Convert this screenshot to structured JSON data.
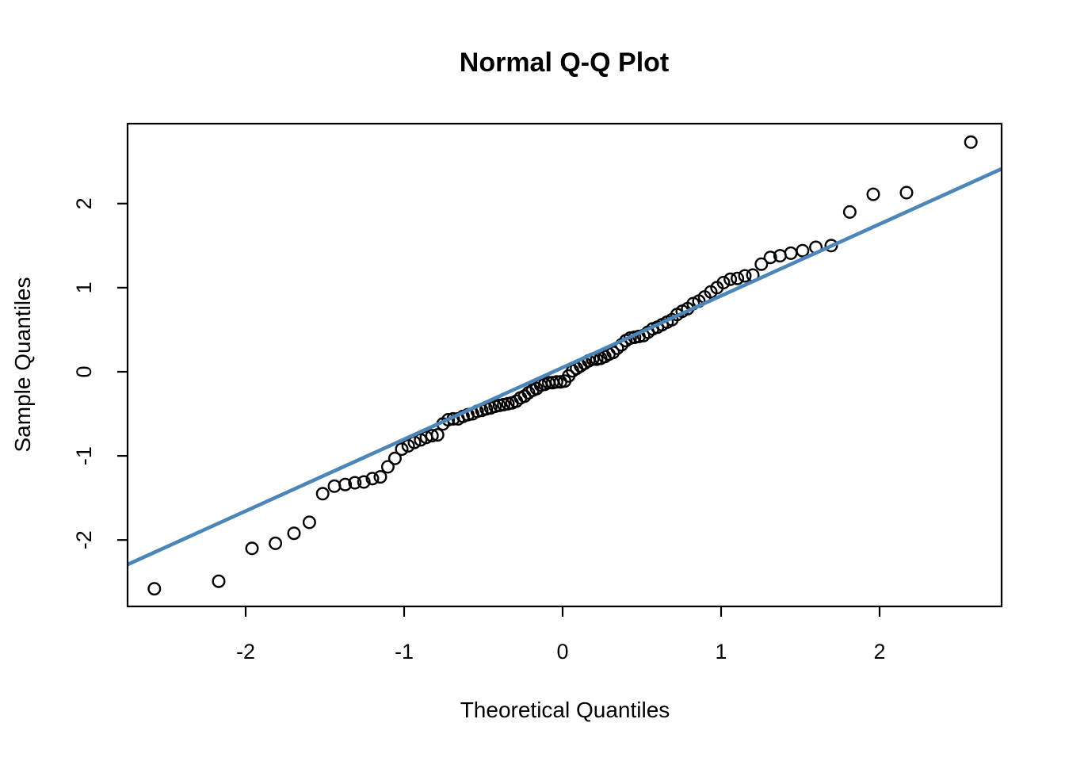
{
  "chart_data": {
    "type": "scatter",
    "title": "Normal Q-Q Plot",
    "xlabel": "Theoretical Quantiles",
    "ylabel": "Sample Quantiles",
    "xlim": [
      -2.745,
      2.77
    ],
    "ylim": [
      -2.79,
      2.95
    ],
    "x_ticks": [
      -2,
      -1,
      0,
      1,
      2
    ],
    "y_ticks": [
      -2,
      -1,
      0,
      1,
      2
    ],
    "grid": false,
    "legend": "none",
    "n_points": 100,
    "point_style": {
      "shape": "open-circle",
      "stroke_color": "#000000",
      "fill": "none"
    },
    "reference_line": {
      "description": "qqline",
      "slope": 0.853,
      "intercept": 0.05,
      "color": "#4c86b8"
    },
    "background_color": "#ffffff",
    "axis_color": "#000000",
    "points": [
      [
        -2.576,
        -2.58
      ],
      [
        -2.17,
        -2.49
      ],
      [
        -1.96,
        -2.1
      ],
      [
        -1.812,
        -2.04
      ],
      [
        -1.695,
        -1.92
      ],
      [
        -1.598,
        -1.79
      ],
      [
        -1.514,
        -1.45
      ],
      [
        -1.44,
        -1.36
      ],
      [
        -1.372,
        -1.34
      ],
      [
        -1.311,
        -1.32
      ],
      [
        -1.254,
        -1.31
      ],
      [
        -1.2,
        -1.27
      ],
      [
        -1.15,
        -1.25
      ],
      [
        -1.103,
        -1.13
      ],
      [
        -1.058,
        -1.03
      ],
      [
        -1.015,
        -0.92
      ],
      [
        -0.974,
        -0.88
      ],
      [
        -0.935,
        -0.84
      ],
      [
        -0.896,
        -0.81
      ],
      [
        -0.86,
        -0.78
      ],
      [
        -0.824,
        -0.76
      ],
      [
        -0.789,
        -0.75
      ],
      [
        -0.755,
        -0.62
      ],
      [
        -0.722,
        -0.57
      ],
      [
        -0.69,
        -0.56
      ],
      [
        -0.659,
        -0.56
      ],
      [
        -0.628,
        -0.53
      ],
      [
        -0.598,
        -0.51
      ],
      [
        -0.568,
        -0.5
      ],
      [
        -0.539,
        -0.47
      ],
      [
        -0.51,
        -0.46
      ],
      [
        -0.482,
        -0.44
      ],
      [
        -0.454,
        -0.43
      ],
      [
        -0.426,
        -0.41
      ],
      [
        -0.399,
        -0.4
      ],
      [
        -0.372,
        -0.39
      ],
      [
        -0.345,
        -0.38
      ],
      [
        -0.319,
        -0.37
      ],
      [
        -0.292,
        -0.35
      ],
      [
        -0.266,
        -0.31
      ],
      [
        -0.24,
        -0.29
      ],
      [
        -0.215,
        -0.25
      ],
      [
        -0.189,
        -0.22
      ],
      [
        -0.164,
        -0.2
      ],
      [
        -0.138,
        -0.16
      ],
      [
        -0.113,
        -0.15
      ],
      [
        -0.088,
        -0.13
      ],
      [
        -0.063,
        -0.13
      ],
      [
        -0.038,
        -0.12
      ],
      [
        -0.013,
        -0.12
      ],
      [
        0.013,
        -0.11
      ],
      [
        0.038,
        -0.05
      ],
      [
        0.063,
        0.01
      ],
      [
        0.088,
        0.04
      ],
      [
        0.113,
        0.07
      ],
      [
        0.138,
        0.1
      ],
      [
        0.164,
        0.13
      ],
      [
        0.189,
        0.15
      ],
      [
        0.215,
        0.15
      ],
      [
        0.24,
        0.16
      ],
      [
        0.266,
        0.18
      ],
      [
        0.292,
        0.21
      ],
      [
        0.319,
        0.23
      ],
      [
        0.345,
        0.28
      ],
      [
        0.372,
        0.32
      ],
      [
        0.399,
        0.37
      ],
      [
        0.426,
        0.4
      ],
      [
        0.454,
        0.41
      ],
      [
        0.482,
        0.42
      ],
      [
        0.51,
        0.43
      ],
      [
        0.539,
        0.47
      ],
      [
        0.568,
        0.51
      ],
      [
        0.598,
        0.53
      ],
      [
        0.628,
        0.56
      ],
      [
        0.659,
        0.59
      ],
      [
        0.69,
        0.62
      ],
      [
        0.722,
        0.68
      ],
      [
        0.755,
        0.72
      ],
      [
        0.789,
        0.75
      ],
      [
        0.824,
        0.81
      ],
      [
        0.86,
        0.84
      ],
      [
        0.896,
        0.89
      ],
      [
        0.935,
        0.95
      ],
      [
        0.974,
        1.0
      ],
      [
        1.015,
        1.06
      ],
      [
        1.058,
        1.1
      ],
      [
        1.103,
        1.11
      ],
      [
        1.15,
        1.14
      ],
      [
        1.2,
        1.15
      ],
      [
        1.254,
        1.28
      ],
      [
        1.311,
        1.36
      ],
      [
        1.372,
        1.38
      ],
      [
        1.44,
        1.41
      ],
      [
        1.514,
        1.44
      ],
      [
        1.598,
        1.48
      ],
      [
        1.695,
        1.5
      ],
      [
        1.812,
        1.9
      ],
      [
        1.96,
        2.11
      ],
      [
        2.17,
        2.13
      ],
      [
        2.576,
        2.73
      ]
    ]
  }
}
